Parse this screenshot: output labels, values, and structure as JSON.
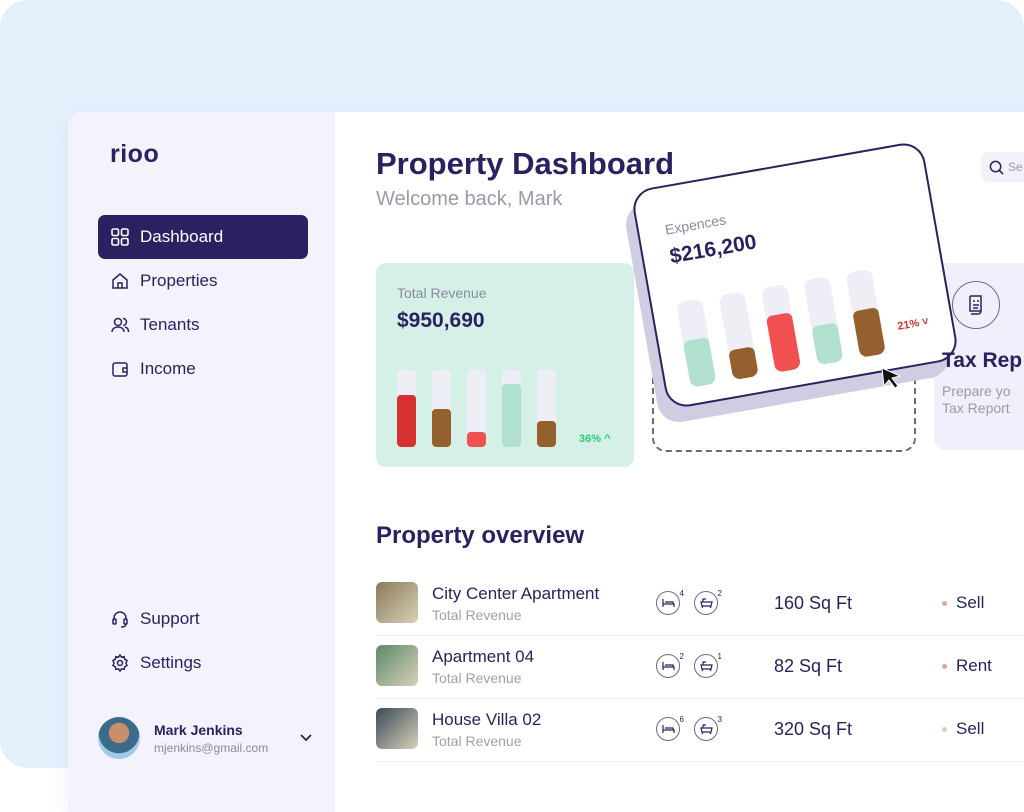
{
  "sidebar": {
    "logo": "rioo",
    "items": [
      {
        "label": "Dashboard",
        "icon": "grid-icon",
        "active": true
      },
      {
        "label": "Properties",
        "icon": "home-icon"
      },
      {
        "label": "Tenants",
        "icon": "users-icon"
      },
      {
        "label": "Income",
        "icon": "wallet-icon"
      }
    ],
    "bottom_items": [
      {
        "label": "Support",
        "icon": "headset-icon"
      },
      {
        "label": "Settings",
        "icon": "gear-icon"
      }
    ],
    "user": {
      "name": "Mark Jenkins",
      "email": "mjenkins@gmail.com"
    }
  },
  "header": {
    "title": "Property Dashboard",
    "welcome": "Welcome back, Mark",
    "search_placeholder": "Se"
  },
  "revenue": {
    "label": "Total Revenue",
    "amount": "$950,690",
    "change": "36%",
    "direction": "up",
    "bars": [
      {
        "fraction": 0.68,
        "color": "#d63031"
      },
      {
        "fraction": 0.49,
        "color": "#94602e"
      },
      {
        "fraction": 0.2,
        "color": "#f05050"
      },
      {
        "fraction": 0.82,
        "color": "#b2e0cf"
      },
      {
        "fraction": 0.34,
        "color": "#94602e"
      }
    ]
  },
  "expenses": {
    "label": "Expences",
    "amount": "$216,200",
    "change": "21%",
    "direction": "down",
    "bars": [
      {
        "fraction": 0.55,
        "color": "#b2e0cf"
      },
      {
        "fraction": 0.35,
        "color": "#94602e"
      },
      {
        "fraction": 0.66,
        "color": "#f05050"
      },
      {
        "fraction": 0.45,
        "color": "#b2e0cf"
      },
      {
        "fraction": 0.55,
        "color": "#94602e"
      }
    ]
  },
  "tax": {
    "title": "Tax Rep",
    "desc": "Prepare yo Tax Report"
  },
  "overview": {
    "title": "Property overview",
    "rows": [
      {
        "name": "City Center Apartment",
        "sub": "Total Revenue",
        "beds": "4",
        "baths": "2",
        "area": "160 Sq Ft",
        "status": "Sell",
        "dot": "#e8a0a8",
        "thumb": "#8a7a5a"
      },
      {
        "name": "Apartment 04",
        "sub": "Total Revenue",
        "beds": "2",
        "baths": "1",
        "area": "82 Sq Ft",
        "status": "Rent",
        "dot": "#e8a0a8",
        "thumb": "#5c8a6a"
      },
      {
        "name": "House Villa 02",
        "sub": "Total Revenue",
        "beds": "6",
        "baths": "3",
        "area": "320 Sq Ft",
        "status": "Sell",
        "dot": "#b2e0cf",
        "thumb": "#3a4a5a"
      }
    ]
  }
}
